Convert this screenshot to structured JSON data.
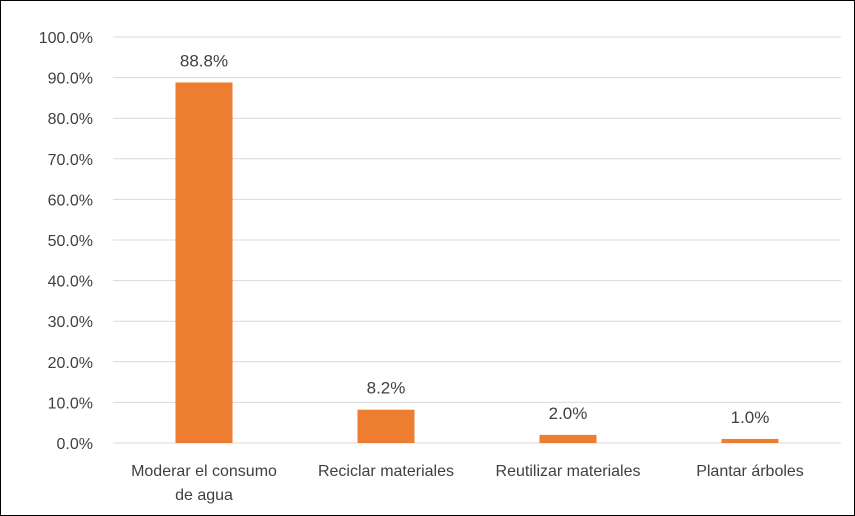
{
  "chart_data": {
    "type": "bar",
    "title": "",
    "xlabel": "",
    "ylabel": "",
    "ylim": [
      0,
      100
    ],
    "y_ticks": [
      "0.0%",
      "10.0%",
      "20.0%",
      "30.0%",
      "40.0%",
      "50.0%",
      "60.0%",
      "70.0%",
      "80.0%",
      "90.0%",
      "100.0%"
    ],
    "grid": true,
    "legend": "none",
    "bar_color": "#ED7D31",
    "grid_color": "#D9D9D9",
    "categories": [
      [
        "Moderar el consumo",
        "de agua"
      ],
      [
        "Reciclar materiales"
      ],
      [
        "Reutilizar materiales"
      ],
      [
        "Plantar árboles"
      ]
    ],
    "values": [
      88.8,
      8.2,
      2.0,
      1.0
    ],
    "data_labels": [
      "88.8%",
      "8.2%",
      "2.0%",
      "1.0%"
    ]
  }
}
